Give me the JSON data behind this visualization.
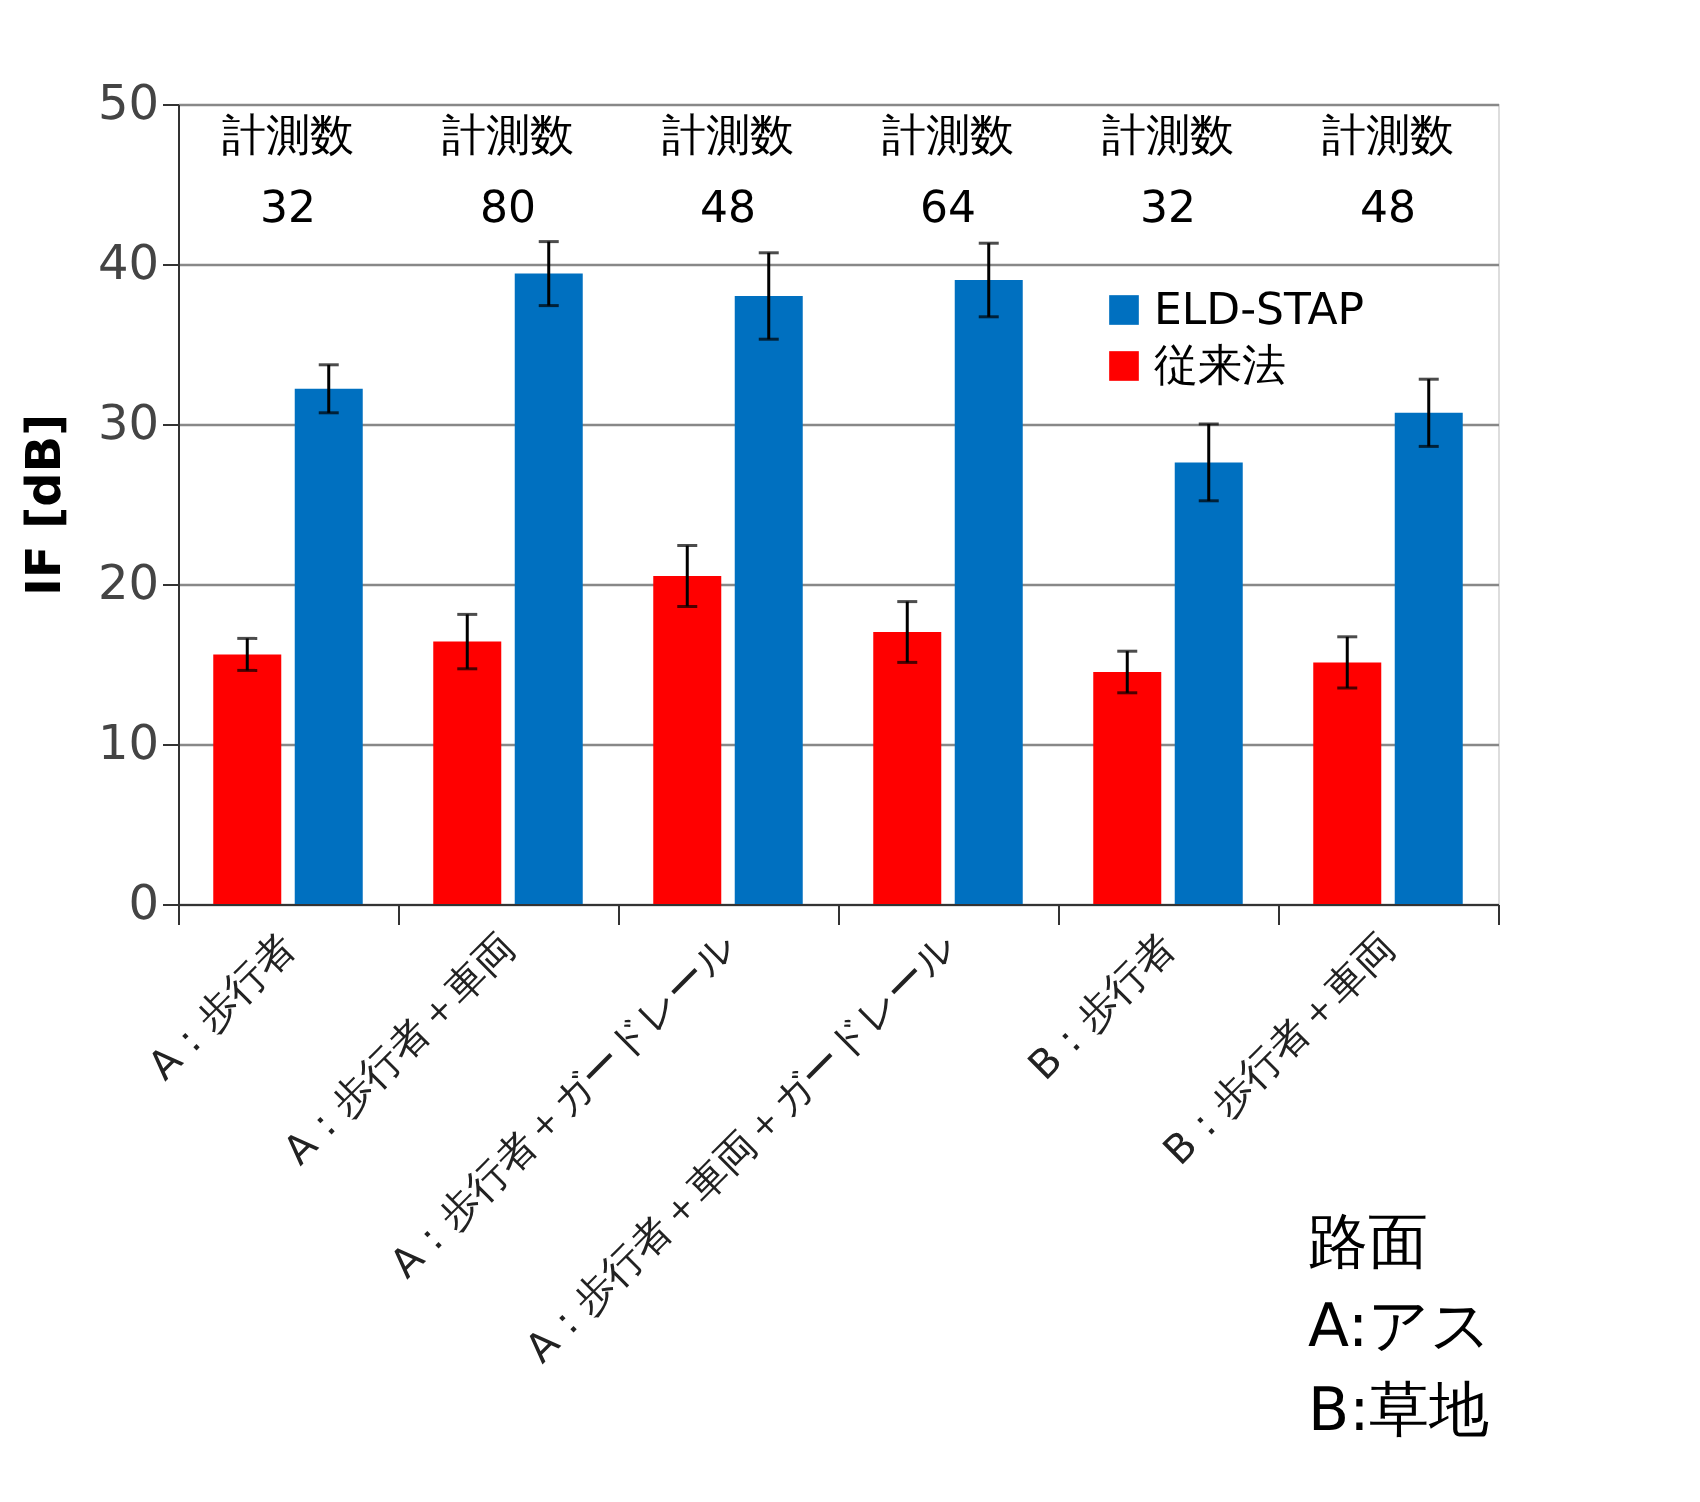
{
  "chart_data": {
    "type": "bar",
    "ylabel": "IF [dB]",
    "categories": [
      "A：歩行者",
      "A：歩行者＋車両",
      "A：歩行者＋ガードレール",
      "A：歩行者＋車両＋ガードレール",
      "B：歩行者",
      "B：歩行者＋車両"
    ],
    "series": [
      {
        "name": "ELD-STAP",
        "color": "#0070c0",
        "values": [
          32.2,
          39.4,
          38.0,
          39.0,
          27.6,
          30.7
        ],
        "errors": [
          1.5,
          2.0,
          2.7,
          2.3,
          2.4,
          2.1
        ]
      },
      {
        "name": "従来法",
        "color": "#ff0000",
        "values": [
          15.6,
          16.4,
          20.5,
          17.0,
          14.5,
          15.1
        ],
        "errors": [
          1.0,
          1.7,
          1.9,
          1.9,
          1.3,
          1.6
        ]
      }
    ],
    "ylim": [
      0,
      50
    ],
    "yticks": [
      0,
      10,
      20,
      30,
      40,
      50
    ],
    "grid": "y",
    "legend": "top right",
    "annotations": [
      "計測数\n32",
      "計測数\n80",
      "計測数\n48",
      "計測数\n64",
      "計測数\n32",
      "計測数\n48",
      "路面\nA:アス\nB:草地"
    ]
  }
}
